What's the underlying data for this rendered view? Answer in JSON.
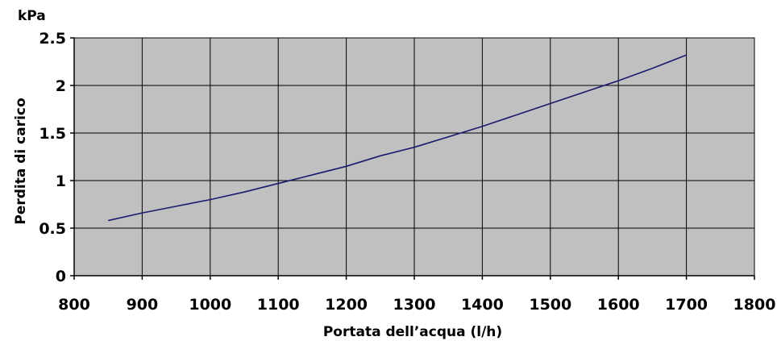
{
  "chart_data": {
    "type": "line",
    "title": "",
    "xlabel": "Portata dell’acqua (l/h)",
    "ylabel": "Perdita di carico",
    "y_unit": "kPa",
    "xlim": [
      800,
      1800
    ],
    "ylim": [
      0,
      2.5
    ],
    "x_ticks": [
      "800",
      "900",
      "1000",
      "1100",
      "1200",
      "1300",
      "1400",
      "1500",
      "1600",
      "1700",
      "1800"
    ],
    "y_ticks": [
      "0",
      "0.5",
      "1",
      "1.5",
      "2",
      "2.5"
    ],
    "grid": true,
    "series": [
      {
        "x": [
          850,
          900,
          950,
          1000,
          1050,
          1100,
          1150,
          1200,
          1250,
          1300,
          1350,
          1400,
          1450,
          1500,
          1550,
          1600,
          1650,
          1700
        ],
        "y": [
          0.58,
          0.66,
          0.73,
          0.8,
          0.88,
          0.97,
          1.06,
          1.15,
          1.26,
          1.35,
          1.46,
          1.57,
          1.69,
          1.81,
          1.93,
          2.05,
          2.18,
          2.32
        ]
      }
    ],
    "colors": {
      "plot_background": "#c0c0c0",
      "grid": "#000000",
      "line": "#1a1a6e"
    }
  }
}
